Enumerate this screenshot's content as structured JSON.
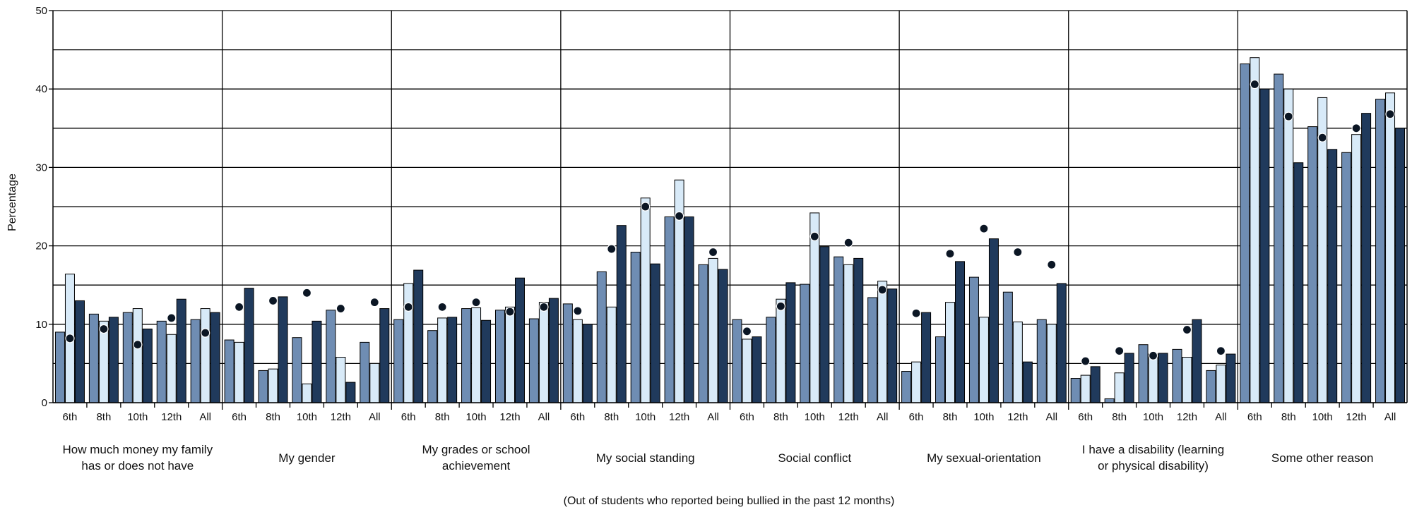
{
  "chart_data": {
    "type": "bar",
    "ylabel": "Percentage",
    "xlabel": "(Out of students who reported being bullied in the past 12 months)",
    "ylim": [
      0,
      50
    ],
    "yticks": [
      0,
      10,
      20,
      30,
      40,
      50
    ],
    "grid": true,
    "sub_categories": [
      "6th",
      "8th",
      "10th",
      "12th",
      "All"
    ],
    "colors": {
      "series_1": "#6f8db3",
      "series_2": "#d8eaf8",
      "series_3": "#203a5c",
      "marker": "#0b1624"
    },
    "groups": [
      {
        "label_lines": [
          "How much money my family",
          "has or does not have"
        ],
        "series_1": [
          9.0,
          11.3,
          11.5,
          10.4,
          10.6
        ],
        "series_2": [
          16.4,
          10.4,
          12.0,
          8.7,
          12.0
        ],
        "series_3": [
          13.0,
          10.9,
          9.4,
          13.2,
          11.5
        ],
        "marker": [
          8.2,
          9.4,
          7.4,
          10.8,
          8.9
        ]
      },
      {
        "label_lines": [
          "My gender"
        ],
        "series_1": [
          8.0,
          4.1,
          8.3,
          11.8,
          7.7
        ],
        "series_2": [
          7.7,
          4.3,
          2.4,
          5.8,
          5.0
        ],
        "series_3": [
          14.6,
          13.5,
          10.4,
          2.6,
          12.0
        ],
        "marker": [
          12.2,
          13.0,
          14.0,
          12.0,
          12.8
        ]
      },
      {
        "label_lines": [
          "My grades or school",
          "achievement"
        ],
        "series_1": [
          10.6,
          9.2,
          12.0,
          11.8,
          10.7
        ],
        "series_2": [
          15.2,
          10.8,
          12.1,
          12.2,
          12.8
        ],
        "series_3": [
          16.9,
          10.9,
          10.5,
          15.9,
          13.3
        ],
        "marker": [
          12.2,
          12.2,
          12.8,
          11.6,
          12.2
        ]
      },
      {
        "label_lines": [
          "My social standing"
        ],
        "series_1": [
          12.6,
          16.7,
          19.2,
          23.7,
          17.6
        ],
        "series_2": [
          10.6,
          12.2,
          26.1,
          28.4,
          18.4
        ],
        "series_3": [
          10.0,
          22.6,
          17.7,
          23.7,
          17.0
        ],
        "marker": [
          11.7,
          19.6,
          25.0,
          23.8,
          19.2
        ]
      },
      {
        "label_lines": [
          "Social conflict"
        ],
        "series_1": [
          10.6,
          10.9,
          15.1,
          18.6,
          13.4
        ],
        "series_2": [
          8.1,
          13.2,
          24.2,
          17.6,
          15.5
        ],
        "series_3": [
          8.4,
          15.3,
          19.9,
          18.4,
          14.5
        ],
        "marker": [
          9.1,
          12.3,
          21.2,
          20.4,
          14.4
        ]
      },
      {
        "label_lines": [
          "My sexual-orientation"
        ],
        "series_1": [
          4.0,
          8.4,
          16.0,
          14.1,
          10.6
        ],
        "series_2": [
          5.2,
          12.8,
          10.9,
          10.3,
          10.0
        ],
        "series_3": [
          11.5,
          18.0,
          20.9,
          5.2,
          15.2
        ],
        "marker": [
          11.4,
          19.0,
          22.2,
          19.2,
          17.6
        ]
      },
      {
        "label_lines": [
          "I have a disability (learning",
          "or physical disability)"
        ],
        "series_1": [
          3.1,
          0.5,
          7.4,
          6.8,
          4.1
        ],
        "series_2": [
          3.5,
          3.8,
          6.2,
          5.8,
          4.8
        ],
        "series_3": [
          4.6,
          6.3,
          6.3,
          10.6,
          6.2
        ],
        "marker": [
          5.3,
          6.6,
          6.0,
          9.3,
          6.6
        ]
      },
      {
        "label_lines": [
          "Some other reason"
        ],
        "series_1": [
          43.2,
          41.9,
          35.2,
          31.9,
          38.7
        ],
        "series_2": [
          44.0,
          40.0,
          38.9,
          34.2,
          39.5
        ],
        "series_3": [
          40.0,
          30.6,
          32.3,
          36.9,
          35.0
        ],
        "marker": [
          40.6,
          36.5,
          33.8,
          35.0,
          36.8
        ]
      }
    ]
  }
}
